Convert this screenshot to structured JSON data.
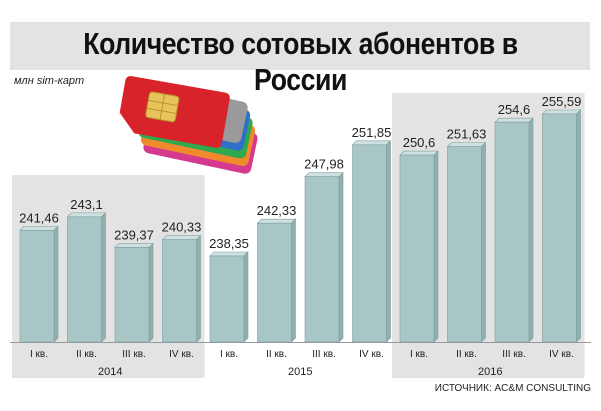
{
  "title": "Количество сотовых абонентов в России",
  "unit_label": "млн sim-карт",
  "source": "ИСТОЧНИК: AC&M CONSULTING",
  "colors": {
    "bar": "#a9c6c6",
    "bar_top": "#cfe0e0",
    "bar_stroke": "#7f9e9e",
    "band": "#e3e3e3",
    "text": "#222222"
  },
  "chart_data": {
    "type": "bar",
    "categories": [
      "I кв.",
      "II кв.",
      "III кв.",
      "IV кв.",
      "I кв.",
      "II кв.",
      "III кв.",
      "IV кв.",
      "I кв.",
      "II кв.",
      "III кв.",
      "IV кв."
    ],
    "values": [
      241.46,
      243.1,
      239.37,
      240.33,
      238.35,
      242.33,
      247.98,
      251.85,
      250.6,
      251.63,
      254.6,
      255.59
    ],
    "value_labels": [
      "241,46",
      "243,1",
      "239,37",
      "240,33",
      "238,35",
      "242,33",
      "247,98",
      "251,85",
      "250,6",
      "251,63",
      "254,6",
      "255,59"
    ],
    "groups": [
      {
        "label": "2014",
        "start": 0,
        "end": 3
      },
      {
        "label": "2015",
        "start": 4,
        "end": 7
      },
      {
        "label": "2016",
        "start": 8,
        "end": 11
      }
    ],
    "ylabel": "млн sim-карт"
  }
}
